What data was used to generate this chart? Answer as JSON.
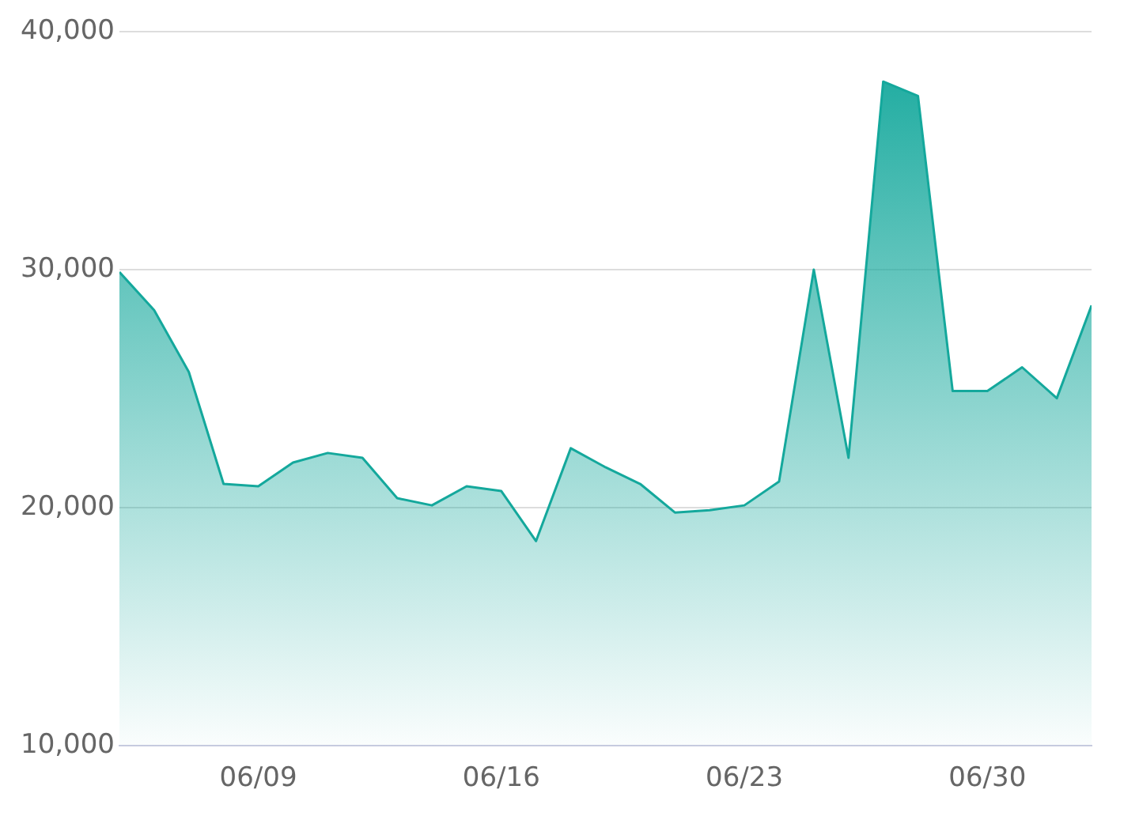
{
  "chart_data": {
    "type": "area",
    "x": [
      "--06-05",
      "--06-06",
      "--06-07",
      "--06-08",
      "--06-09",
      "--06-10",
      "--06-11",
      "--06-12",
      "--06-13",
      "--06-14",
      "--06-15",
      "--06-16",
      "--06-17",
      "--06-18",
      "--06-19",
      "--06-20",
      "--06-21",
      "--06-22",
      "--06-23",
      "--06-24",
      "--06-25",
      "--06-26",
      "--06-27",
      "--06-28",
      "--06-29",
      "--06-30",
      "--07-01",
      "--07-02",
      "--07-03"
    ],
    "series": [
      {
        "color": "#14a89c",
        "values": [
          29900,
          28300,
          25700,
          21000,
          20900,
          21900,
          22300,
          22100,
          20400,
          20100,
          20900,
          20700,
          18600,
          22500,
          21700,
          21000,
          19800,
          19900,
          20100,
          21100,
          30000,
          22100,
          37900,
          37300,
          24900,
          24900,
          25900,
          24600,
          28500
        ]
      }
    ],
    "xlim": [
      "--06-05",
      "--07-03"
    ],
    "xticks": [
      {
        "value": "--06-09",
        "label": "06/09"
      },
      {
        "value": "--06-16",
        "label": "06/16"
      },
      {
        "value": "--06-23",
        "label": "06/23"
      },
      {
        "value": "--06-30",
        "label": "06/30"
      }
    ],
    "ylim": [
      10000,
      40000
    ],
    "yticks": [
      {
        "value": 10000,
        "label": "10,000"
      },
      {
        "value": 20000,
        "label": "20,000"
      },
      {
        "value": 30000,
        "label": "30,000"
      },
      {
        "value": 40000,
        "label": "40,000"
      }
    ],
    "grid": "y",
    "legend": false,
    "marker": "none",
    "line_style": "solid"
  }
}
